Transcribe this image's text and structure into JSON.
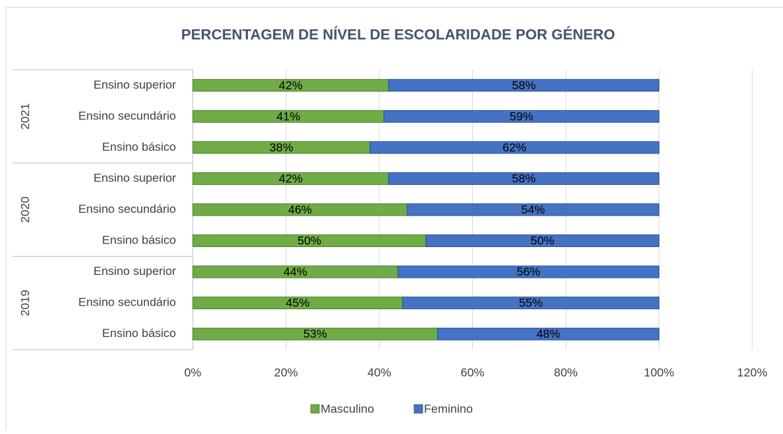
{
  "chart_data": {
    "type": "stacked-bar-horizontal",
    "title": "PERCENTAGEM DE NÍVEL DE ESCOLARIDADE POR GÉNERO",
    "group_labels": [
      "2021",
      "2020",
      "2019"
    ],
    "categories": [
      "Ensino superior",
      "Ensino secundário",
      "Ensino básico",
      "Ensino superior",
      "Ensino secundário",
      "Ensino básico",
      "Ensino superior",
      "Ensino secundário",
      "Ensino básico"
    ],
    "series": [
      {
        "name": "Masculino",
        "color": "#6fac46",
        "edge": "#4e7d2f",
        "values": [
          42,
          41,
          38,
          42,
          46,
          50,
          44,
          45,
          52.5
        ],
        "value_labels": [
          "42%",
          "41%",
          "38%",
          "42%",
          "46%",
          "50%",
          "44%",
          "45%",
          "53%"
        ]
      },
      {
        "name": "Feminino",
        "color": "#4472c4",
        "edge": "#2f528f",
        "values": [
          58,
          59,
          62,
          58,
          54,
          50,
          56,
          55,
          47.5
        ],
        "value_labels": [
          "58%",
          "59%",
          "62%",
          "58%",
          "54%",
          "50%",
          "56%",
          "55%",
          "48%"
        ]
      }
    ],
    "xlim": [
      0,
      120
    ],
    "xticks": [
      {
        "value": 0,
        "label": "0%"
      },
      {
        "value": 20,
        "label": "20%"
      },
      {
        "value": 40,
        "label": "40%"
      },
      {
        "value": 60,
        "label": "60%"
      },
      {
        "value": 80,
        "label": "80%"
      },
      {
        "value": 100,
        "label": "100%"
      },
      {
        "value": 120,
        "label": "120%"
      }
    ],
    "grid": true,
    "legend": "bottom"
  }
}
